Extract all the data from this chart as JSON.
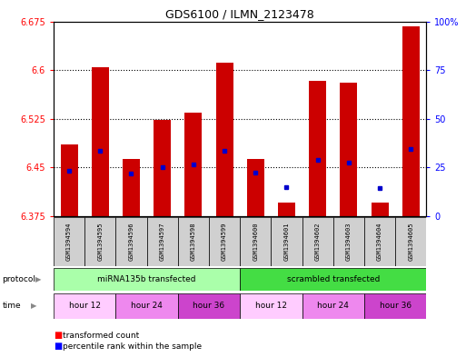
{
  "title": "GDS6100 / ILMN_2123478",
  "samples": [
    "GSM1394594",
    "GSM1394595",
    "GSM1394596",
    "GSM1394597",
    "GSM1394598",
    "GSM1394599",
    "GSM1394600",
    "GSM1394601",
    "GSM1394602",
    "GSM1394603",
    "GSM1394604",
    "GSM1394605"
  ],
  "bar_tops": [
    6.485,
    6.605,
    6.463,
    6.523,
    6.535,
    6.612,
    6.463,
    6.395,
    6.583,
    6.58,
    6.395,
    6.668
  ],
  "bar_bottom": 6.375,
  "blue_markers": [
    6.445,
    6.475,
    6.44,
    6.45,
    6.455,
    6.475,
    6.442,
    6.42,
    6.462,
    6.458,
    6.418,
    6.478
  ],
  "ylim_left": [
    6.375,
    6.675
  ],
  "yticks_left": [
    6.375,
    6.45,
    6.525,
    6.6,
    6.675
  ],
  "yticks_right": [
    0,
    25,
    50,
    75,
    100
  ],
  "bar_color": "#cc0000",
  "blue_color": "#0000cc",
  "protocol_groups": [
    {
      "label": "miRNA135b transfected",
      "start": 0,
      "end": 6,
      "color": "#aaffaa"
    },
    {
      "label": "scrambled transfected",
      "start": 6,
      "end": 12,
      "color": "#44dd44"
    }
  ],
  "time_groups": [
    {
      "label": "hour 12",
      "start": 0,
      "end": 2,
      "color": "#ffccff"
    },
    {
      "label": "hour 24",
      "start": 2,
      "end": 4,
      "color": "#ee88ee"
    },
    {
      "label": "hour 36",
      "start": 4,
      "end": 6,
      "color": "#cc44cc"
    },
    {
      "label": "hour 12",
      "start": 6,
      "end": 8,
      "color": "#ffccff"
    },
    {
      "label": "hour 24",
      "start": 8,
      "end": 10,
      "color": "#ee88ee"
    },
    {
      "label": "hour 36",
      "start": 10,
      "end": 12,
      "color": "#cc44cc"
    }
  ],
  "bg_color": "#ffffff",
  "sample_bg": "#d0d0d0",
  "grid_yticks": [
    6.45,
    6.525,
    6.6
  ]
}
